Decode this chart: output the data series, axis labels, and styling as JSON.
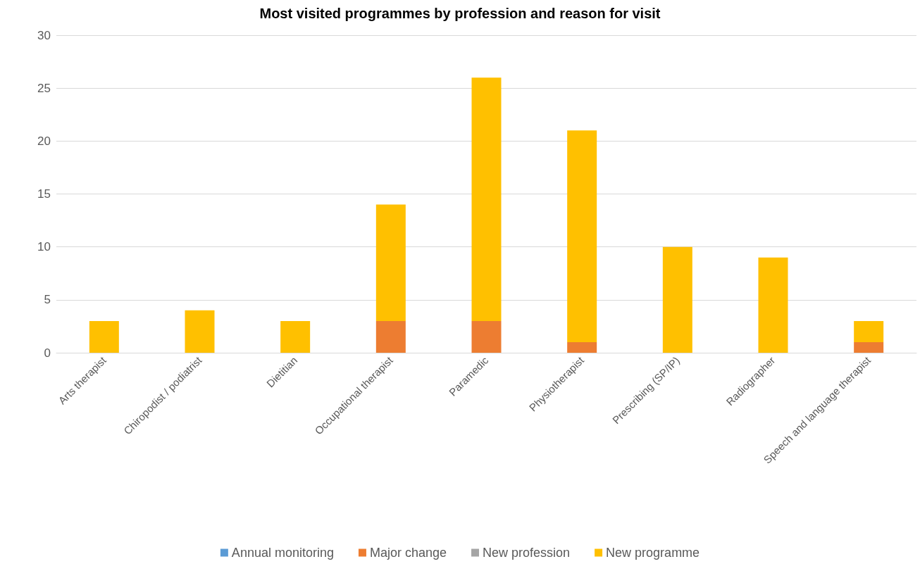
{
  "chart_data": {
    "type": "bar",
    "title": "Most visited programmes by profession and reason for visit",
    "categories": [
      "Arts therapist",
      "Chiropodist / podiatrist",
      "Dietitian",
      "Occupational therapist",
      "Paramedic",
      "Physiotherapist",
      "Prescribing (SP/IP)",
      "Radiographer",
      "Speech and language therapist"
    ],
    "stacked": true,
    "series": [
      {
        "name": "Annual monitoring",
        "color": "#5b9bd5",
        "values": [
          0,
          0,
          0,
          0,
          0,
          0,
          0,
          0,
          0
        ]
      },
      {
        "name": "Major change",
        "color": "#ed7d31",
        "values": [
          0,
          0,
          0,
          3,
          3,
          1,
          0,
          0,
          1
        ]
      },
      {
        "name": "New profession",
        "color": "#a5a5a5",
        "values": [
          0,
          0,
          0,
          0,
          0,
          0,
          0,
          0,
          0
        ]
      },
      {
        "name": "New programme",
        "color": "#ffc000",
        "values": [
          3,
          4,
          3,
          11,
          23,
          20,
          10,
          9,
          2
        ]
      }
    ],
    "ylim": [
      0,
      30
    ],
    "yticks": [
      0,
      5,
      10,
      15,
      20,
      25,
      30
    ],
    "grid": "y",
    "legend": "bottom"
  }
}
